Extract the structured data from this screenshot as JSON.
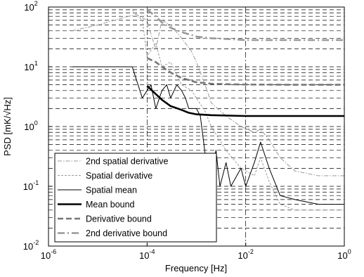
{
  "chart_data": {
    "type": "line",
    "xlabel": "Frequency [Hz]",
    "ylabel": "PSD [mK/√Hz]",
    "xscale": "log",
    "yscale": "log",
    "xlim": [
      1e-06,
      1
    ],
    "ylim": [
      0.01,
      100
    ],
    "x_ticks": [
      {
        "base": "10",
        "exp": "-6",
        "value": 1e-06
      },
      {
        "base": "10",
        "exp": "-4",
        "value": 0.0001
      },
      {
        "base": "10",
        "exp": "-2",
        "value": 0.01
      },
      {
        "base": "10",
        "exp": "0",
        "value": 1
      }
    ],
    "y_ticks": [
      {
        "base": "10",
        "exp": "-2",
        "value": 0.01
      },
      {
        "base": "10",
        "exp": "-1",
        "value": 0.1
      },
      {
        "base": "10",
        "exp": "0",
        "value": 1
      },
      {
        "base": "10",
        "exp": "1",
        "value": 10
      },
      {
        "base": "10",
        "exp": "2",
        "value": 100
      }
    ],
    "grid": true,
    "legend_position": "bottom-left",
    "series": [
      {
        "name": "2nd spatial derivative",
        "color": "#999999",
        "style": "dashdot-thin",
        "x": [
          3e-06,
          1e-05,
          3e-05,
          6e-05,
          0.0001,
          0.00012,
          0.00015,
          0.0002,
          0.0003,
          0.0005,
          0.0008,
          0.001,
          0.0015,
          0.002,
          0.004,
          0.008,
          0.015,
          0.02,
          0.03,
          0.05,
          0.1,
          0.3,
          1
        ],
        "y": [
          40,
          50,
          65,
          75,
          60,
          35,
          20,
          60,
          50,
          30,
          18,
          12,
          5,
          2.5,
          1.5,
          1.0,
          0.8,
          0.9,
          0.6,
          0.3,
          0.18,
          0.15,
          0.15
        ]
      },
      {
        "name": "Spatial derivative",
        "color": "#999999",
        "style": "dash-thin",
        "x": [
          5e-05,
          8e-05,
          0.0001,
          0.00015,
          0.0002,
          0.0003,
          0.0005,
          0.0008,
          0.001,
          0.0015,
          0.002,
          0.004,
          0.008,
          0.015,
          0.02,
          0.03,
          0.05,
          0.1,
          0.3,
          1
        ],
        "y": [
          90,
          60,
          15,
          25,
          10,
          12,
          5,
          4,
          3,
          1.8,
          1.0,
          0.4,
          0.2,
          0.15,
          0.3,
          0.12,
          0.05,
          0.04,
          0.04,
          0.04
        ]
      },
      {
        "name": "Spatial mean",
        "color": "#000000",
        "style": "solid-thin",
        "x": [
          3e-06,
          5e-05,
          8e-05,
          0.0001,
          0.00012,
          0.00015,
          0.0002,
          0.00025,
          0.0003,
          0.0004,
          0.0005,
          0.0006,
          0.0007,
          0.0008,
          0.001,
          0.0012,
          0.0015,
          0.002,
          0.0025,
          0.003,
          0.004,
          0.005,
          0.008,
          0.01,
          0.015,
          0.02,
          0.03,
          0.05,
          0.1,
          0.3,
          1
        ],
        "y": [
          10,
          10,
          3,
          4,
          5,
          2,
          4,
          5,
          3,
          5,
          4,
          3,
          2,
          2,
          2,
          1.5,
          0.35,
          0.15,
          0.4,
          0.1,
          0.25,
          0.1,
          0.2,
          0.1,
          0.25,
          0.55,
          0.2,
          0.07,
          0.06,
          0.05,
          0.05
        ]
      },
      {
        "name": "Mean bound",
        "color": "#000000",
        "style": "solid-thick",
        "x": [
          0.0001,
          0.00015,
          0.0002,
          0.0003,
          0.0005,
          0.0007,
          0.001,
          0.002,
          0.005,
          0.01,
          0.1,
          1
        ],
        "y": [
          4.8,
          3.5,
          2.8,
          2.2,
          1.9,
          1.7,
          1.6,
          1.55,
          1.52,
          1.5,
          1.5,
          1.5
        ]
      },
      {
        "name": "Derivative bound",
        "color": "#777777",
        "style": "dash-thick",
        "x": [
          0.0001,
          0.00015,
          0.0002,
          0.0003,
          0.0005,
          0.0008,
          0.001,
          0.002,
          0.005,
          0.01,
          0.1,
          1
        ],
        "y": [
          14,
          12,
          10,
          8,
          6.5,
          5.8,
          5.5,
          5.2,
          5.1,
          5.05,
          5.0,
          5.0
        ]
      },
      {
        "name": "2nd derivative bound",
        "color": "#999999",
        "style": "dashdot-thick",
        "x": [
          0.0001,
          0.00015,
          0.0002,
          0.0003,
          0.0005,
          0.0008,
          0.001,
          0.002,
          0.005,
          0.01,
          0.1,
          1
        ],
        "y": [
          90,
          70,
          55,
          45,
          38,
          34,
          32,
          30,
          29,
          28,
          28,
          28
        ]
      }
    ]
  }
}
